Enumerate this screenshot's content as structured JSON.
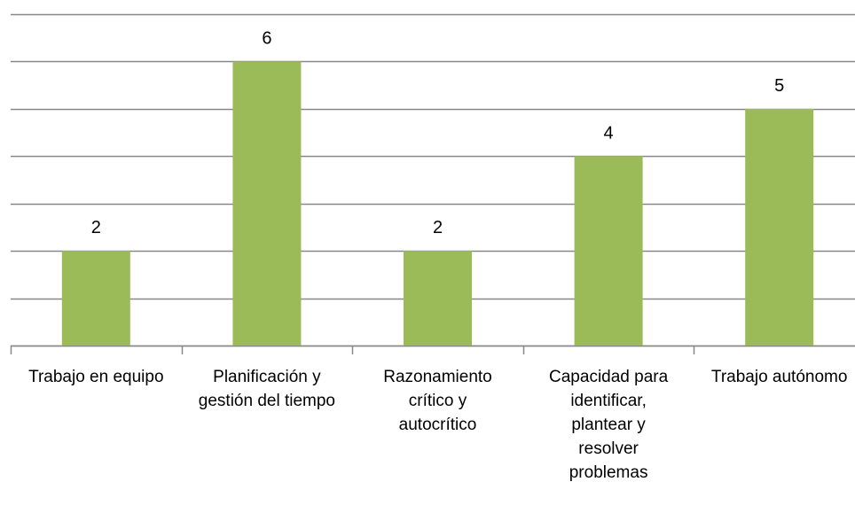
{
  "chart_data": {
    "type": "bar",
    "categories": [
      "Trabajo en equipo",
      "Planificación y gestión del tiempo",
      "Razonamiento crítico y autocrítico",
      "Capacidad para identificar, plantear y resolver problemas",
      "Trabajo autónomo"
    ],
    "values": [
      2,
      6,
      2,
      4,
      5
    ],
    "color": "#9bbb59",
    "ylim": [
      0,
      7
    ],
    "yticks": [
      0,
      1,
      2,
      3,
      4,
      5,
      6,
      7
    ],
    "grid": true
  }
}
